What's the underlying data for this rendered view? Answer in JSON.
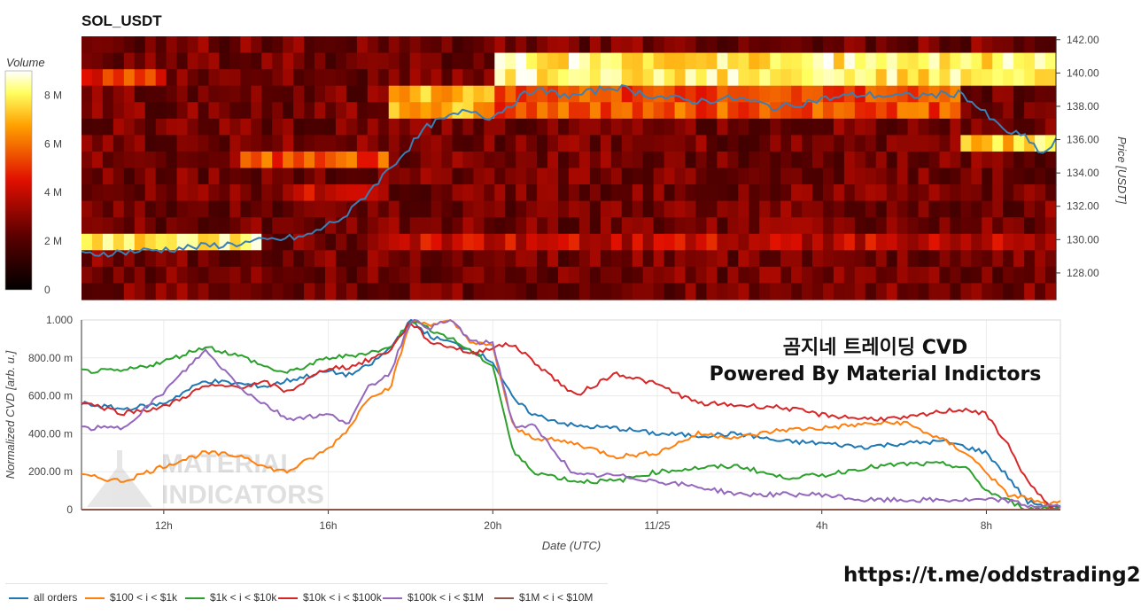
{
  "chart_title": "SOL_USDT",
  "heatmap": {
    "colorbar_title": "Volume",
    "colorbar_ticks": [
      "8 M",
      "6 M",
      "4 M",
      "2 M",
      "0"
    ],
    "colorbar_tick_values": [
      8,
      6,
      4,
      2,
      0
    ],
    "colorbar_max": 9,
    "price_axis_label": "Price [USDT]",
    "price_ticks": [
      "142.00",
      "140.00",
      "138.00",
      "136.00",
      "134.00",
      "132.00",
      "130.00",
      "128.00"
    ],
    "price_tick_values": [
      142,
      140,
      138,
      136,
      134,
      132,
      130,
      128
    ],
    "price_range": [
      126.4,
      142.2
    ],
    "price_line_color": "#3a7fb5"
  },
  "cvd": {
    "y_axis_label": "Normalized CVD [arb. u.]",
    "y_ticks": [
      "1.000",
      "800.00 m",
      "600.00 m",
      "400.00 m",
      "200.00 m",
      "0"
    ],
    "y_tick_values": [
      1.0,
      0.8,
      0.6,
      0.4,
      0.2,
      0
    ],
    "x_axis_label": "Date (UTC)",
    "x_ticks": [
      "12h",
      "16h",
      "20h",
      "11/25",
      "4h",
      "8h"
    ],
    "x_tick_hours": [
      12,
      16,
      20,
      24,
      28,
      32
    ],
    "x_range_hours": [
      10.0,
      33.8
    ]
  },
  "watermark": {
    "line1": "MATERIAL",
    "line2": "INDICATORS"
  },
  "overlay": {
    "line1": "곰지네 트레이딩 CVD",
    "line2": "Powered By Material Indictors"
  },
  "link": "https://t.me/oddstrading2",
  "legend": [
    {
      "label": "all orders",
      "color": "#1f77b4"
    },
    {
      "label": "$100 < i < $1k",
      "color": "#ff7f0e"
    },
    {
      "label": "$1k < i < $10k",
      "color": "#2ca02c"
    },
    {
      "label": "$10k < i < $100k",
      "color": "#d62728"
    },
    {
      "label": "$100k < i < $1M",
      "color": "#9467bd"
    },
    {
      "label": "$1M < i < $10M",
      "color": "#8c564b"
    }
  ],
  "chart_data": [
    {
      "type": "heatmap",
      "title": "SOL_USDT",
      "xlabel": "Date (UTC)",
      "ylabel": "Price [USDT]",
      "x_hours": [
        10.0,
        12.0,
        14.0,
        15.5,
        16.5,
        17.5,
        18.5,
        19.5,
        20.0,
        21.0,
        22.0,
        23.0,
        24.0,
        25.0,
        26.0,
        27.0,
        28.0,
        29.0,
        30.0,
        31.0,
        31.5,
        32.0,
        32.5,
        33.0,
        33.5,
        33.8
      ],
      "price_series": [
        129.1,
        129.4,
        129.8,
        130.2,
        131.5,
        134.2,
        136.9,
        137.8,
        137.3,
        139.0,
        138.6,
        139.2,
        138.6,
        138.3,
        138.5,
        137.9,
        138.4,
        138.7,
        138.6,
        138.7,
        138.8,
        137.7,
        136.6,
        136.2,
        135.1,
        135.9
      ],
      "price_range": [
        126.4,
        142.2
      ],
      "heat_bands": [
        {
          "price": 140.0,
          "from_hour": 20.0,
          "to_hour": 33.8,
          "volume_M": 8.0
        },
        {
          "price": 138.0,
          "from_hour": 17.5,
          "to_hour": 20.0,
          "volume_M": 7.0
        },
        {
          "price": 138.0,
          "from_hour": 20.0,
          "to_hour": 31.5,
          "volume_M": 5.5
        },
        {
          "price": 136.0,
          "from_hour": 31.5,
          "to_hour": 33.8,
          "volume_M": 7.5
        },
        {
          "price": 135.0,
          "from_hour": 14.0,
          "to_hour": 17.5,
          "volume_M": 5.5
        },
        {
          "price": 133.0,
          "from_hour": 15.0,
          "to_hour": 17.5,
          "volume_M": 4.0
        },
        {
          "price": 130.0,
          "from_hour": 10.0,
          "to_hour": 14.5,
          "volume_M": 8.0
        },
        {
          "price": 130.0,
          "from_hour": 17.5,
          "to_hour": 33.8,
          "volume_M": 4.0
        },
        {
          "price": 139.5,
          "from_hour": 10.0,
          "to_hour": 12.0,
          "volume_M": 5.0
        }
      ]
    },
    {
      "type": "line",
      "title": "",
      "xlabel": "Date (UTC)",
      "ylabel": "Normalized CVD [arb. u.]",
      "ylim": [
        0,
        1.0
      ],
      "x": [
        10.0,
        11.0,
        12.0,
        13.0,
        14.0,
        14.5,
        15.0,
        16.0,
        16.5,
        17.0,
        17.5,
        18.0,
        18.5,
        19.0,
        19.5,
        20.0,
        20.5,
        21.0,
        22.0,
        23.0,
        24.0,
        25.0,
        26.0,
        27.0,
        28.0,
        29.0,
        30.0,
        31.0,
        31.5,
        32.0,
        32.5,
        33.0,
        33.5,
        33.8
      ],
      "series": [
        {
          "name": "all orders",
          "values": [
            0.56,
            0.53,
            0.56,
            0.68,
            0.66,
            0.65,
            0.68,
            0.73,
            0.71,
            0.76,
            0.85,
            1.0,
            0.91,
            0.88,
            0.84,
            0.78,
            0.58,
            0.5,
            0.44,
            0.43,
            0.4,
            0.39,
            0.4,
            0.36,
            0.35,
            0.33,
            0.35,
            0.36,
            0.33,
            0.3,
            0.18,
            0.04,
            0.02,
            0.02
          ]
        },
        {
          "name": "$100 < i < $1k",
          "values": [
            0.18,
            0.15,
            0.23,
            0.3,
            0.28,
            0.22,
            0.2,
            0.32,
            0.43,
            0.6,
            0.64,
            0.99,
            0.98,
            0.99,
            0.88,
            0.86,
            0.43,
            0.38,
            0.35,
            0.28,
            0.3,
            0.4,
            0.38,
            0.42,
            0.43,
            0.45,
            0.46,
            0.36,
            0.3,
            0.2,
            0.08,
            0.06,
            0.02,
            0.04
          ]
        },
        {
          "name": "$1k < i < $10k",
          "values": [
            0.73,
            0.73,
            0.78,
            0.86,
            0.8,
            0.75,
            0.72,
            0.8,
            0.81,
            0.83,
            0.85,
            1.0,
            0.95,
            0.9,
            0.83,
            0.76,
            0.3,
            0.2,
            0.15,
            0.15,
            0.2,
            0.22,
            0.23,
            0.17,
            0.18,
            0.22,
            0.24,
            0.24,
            0.22,
            0.1,
            0.05,
            0.0,
            0.01,
            0.01
          ]
        },
        {
          "name": "$10k < i < $100k",
          "values": [
            0.57,
            0.51,
            0.54,
            0.65,
            0.65,
            0.67,
            0.62,
            0.75,
            0.75,
            0.79,
            0.84,
            0.99,
            0.88,
            0.86,
            0.82,
            0.86,
            0.87,
            0.78,
            0.6,
            0.72,
            0.66,
            0.56,
            0.55,
            0.54,
            0.5,
            0.48,
            0.48,
            0.52,
            0.53,
            0.5,
            0.35,
            0.15,
            0.02,
            0.02
          ]
        },
        {
          "name": "$100k < i < $1M",
          "values": [
            0.43,
            0.43,
            0.62,
            0.84,
            0.62,
            0.55,
            0.48,
            0.5,
            0.46,
            0.65,
            0.72,
            1.0,
            0.96,
            1.0,
            0.88,
            0.88,
            0.44,
            0.44,
            0.18,
            0.18,
            0.15,
            0.12,
            0.08,
            0.08,
            0.08,
            0.05,
            0.05,
            0.05,
            0.05,
            0.05,
            0.05,
            0.02,
            0.02,
            0.02
          ]
        },
        {
          "name": "$1M < i < $10M",
          "values": [
            0.0,
            0.0,
            0.0,
            0.0,
            0.0,
            0.0,
            0.0,
            0.0,
            0.0,
            0.0,
            0.0,
            0.0,
            0.0,
            0.0,
            0.0,
            0.0,
            0.0,
            0.0,
            0.0,
            0.0,
            0.0,
            0.0,
            0.0,
            0.0,
            0.0,
            0.0,
            0.0,
            0.0,
            0.0,
            0.0,
            0.0,
            0.0,
            0.0,
            0.0
          ]
        }
      ]
    }
  ]
}
